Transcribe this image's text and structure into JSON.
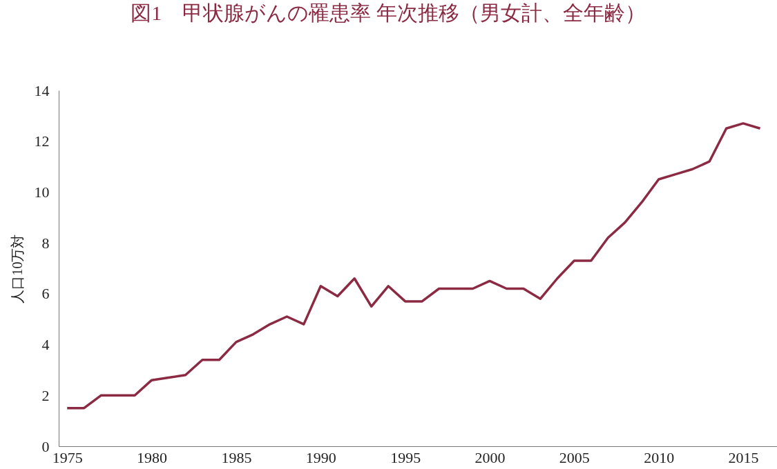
{
  "chart_data": {
    "type": "line",
    "title": "図1　甲状腺がんの罹患率 年次推移（男女計、全年齢）",
    "ylabel": "人口10万対",
    "x": [
      1975,
      1976,
      1977,
      1978,
      1979,
      1980,
      1981,
      1982,
      1983,
      1984,
      1985,
      1986,
      1987,
      1988,
      1989,
      1990,
      1991,
      1992,
      1993,
      1994,
      1995,
      1996,
      1997,
      1998,
      1999,
      2000,
      2001,
      2002,
      2003,
      2004,
      2005,
      2006,
      2007,
      2008,
      2009,
      2010,
      2011,
      2012,
      2013,
      2014,
      2015,
      2016
    ],
    "series": [
      {
        "color": "#8b2a42",
        "values": [
          1.5,
          1.5,
          2.0,
          2.0,
          2.0,
          2.6,
          2.7,
          2.8,
          3.4,
          3.4,
          4.1,
          4.4,
          4.8,
          5.1,
          4.8,
          6.3,
          5.9,
          6.6,
          5.5,
          6.3,
          5.7,
          5.7,
          6.2,
          6.2,
          6.2,
          6.5,
          6.2,
          6.2,
          5.8,
          6.6,
          7.3,
          7.3,
          8.2,
          8.8,
          9.6,
          10.5,
          10.7,
          10.9,
          11.2,
          12.5,
          12.7,
          12.5
        ]
      }
    ],
    "xlim": [
      1974.5,
      2017
    ],
    "xticks": [
      1975,
      1980,
      1985,
      1990,
      1995,
      2000,
      2005,
      2010,
      2015
    ],
    "ylim": [
      0,
      14
    ],
    "yticks": [
      0,
      2,
      4,
      6,
      8,
      10,
      12,
      14
    ]
  }
}
